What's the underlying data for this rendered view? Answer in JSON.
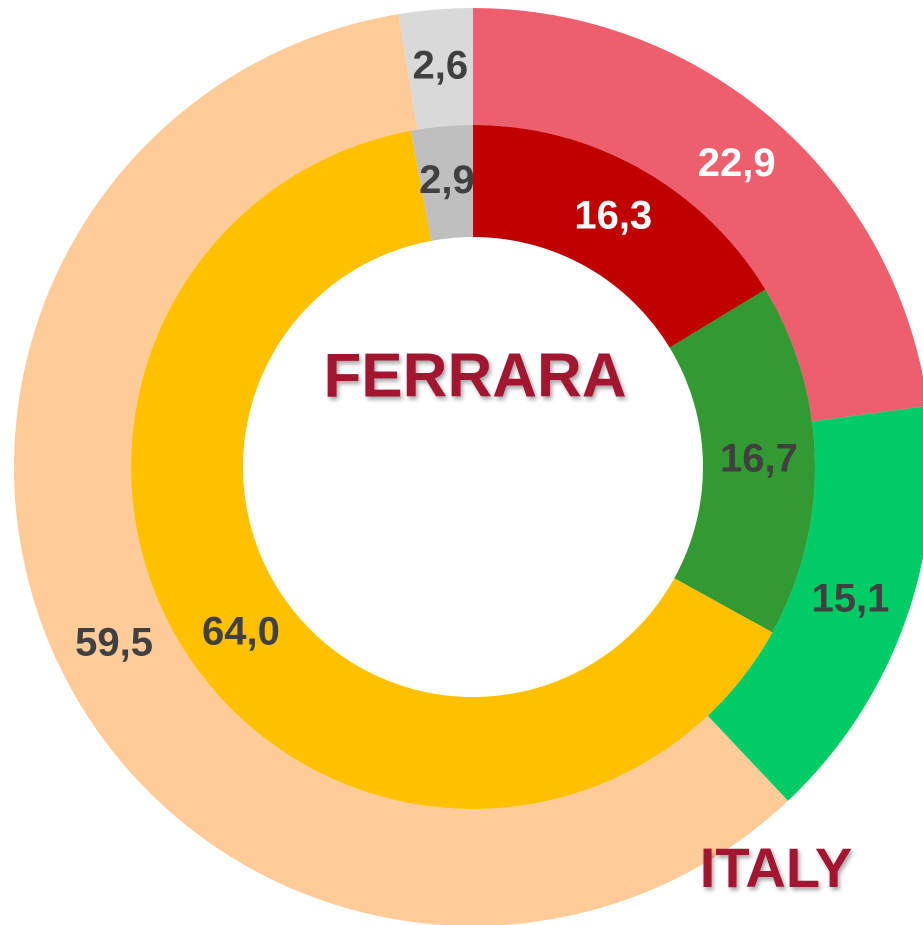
{
  "chart_data": {
    "type": "donut",
    "series": [
      {
        "name": "ITALY",
        "values": [
          22.9,
          15.1,
          59.5,
          2.6
        ],
        "value_labels": [
          "22,9",
          "15,1",
          "59,5",
          "2,6"
        ],
        "colors": [
          "#ee5f6e",
          "#00cc66",
          "#ffcc99",
          "#d9d9d9"
        ],
        "label_colors": [
          "#ffffff",
          "#404040",
          "#404040",
          "#404040"
        ]
      },
      {
        "name": "FERRARA",
        "values": [
          16.3,
          16.7,
          64.0,
          2.9
        ],
        "value_labels": [
          "16,3",
          "16,7",
          "64,0",
          "2,9"
        ],
        "colors": [
          "#c00000",
          "#339933",
          "#ffc000",
          "#bfbfbf"
        ],
        "label_colors": [
          "#ffffff",
          "#404040",
          "#404040",
          "#404040"
        ]
      }
    ]
  }
}
